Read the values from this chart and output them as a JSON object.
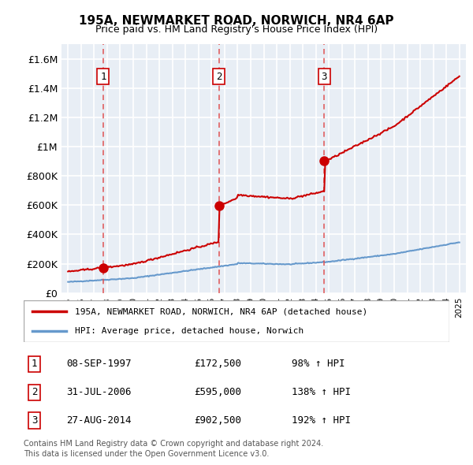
{
  "title": "195A, NEWMARKET ROAD, NORWICH, NR4 6AP",
  "subtitle": "Price paid vs. HM Land Registry's House Price Index (HPI)",
  "ylabel_ticks": [
    "£0",
    "£200K",
    "£400K",
    "£600K",
    "£800K",
    "£1M",
    "£1.2M",
    "£1.4M",
    "£1.6M"
  ],
  "ytick_values": [
    0,
    200000,
    400000,
    600000,
    800000,
    1000000,
    1200000,
    1400000,
    1600000
  ],
  "ylim": [
    0,
    1700000
  ],
  "xlim_years": [
    1995,
    2025
  ],
  "sale_dates": [
    1997.69,
    2006.58,
    2014.65
  ],
  "sale_prices": [
    172500,
    595000,
    902500
  ],
  "sale_labels": [
    "1",
    "2",
    "3"
  ],
  "dashed_line_color": "#e05050",
  "sale_dot_color": "#cc0000",
  "sale_line_color": "#cc0000",
  "hpi_line_color": "#6699cc",
  "plot_bg_color": "#e8eef5",
  "grid_color": "#ffffff",
  "legend_entry1": "195A, NEWMARKET ROAD, NORWICH, NR4 6AP (detached house)",
  "legend_entry2": "HPI: Average price, detached house, Norwich",
  "table_data": [
    [
      "1",
      "08-SEP-1997",
      "£172,500",
      "98% ↑ HPI"
    ],
    [
      "2",
      "31-JUL-2006",
      "£595,000",
      "138% ↑ HPI"
    ],
    [
      "3",
      "27-AUG-2014",
      "£902,500",
      "192% ↑ HPI"
    ]
  ],
  "footnote1": "Contains HM Land Registry data © Crown copyright and database right 2024.",
  "footnote2": "This data is licensed under the Open Government Licence v3.0."
}
